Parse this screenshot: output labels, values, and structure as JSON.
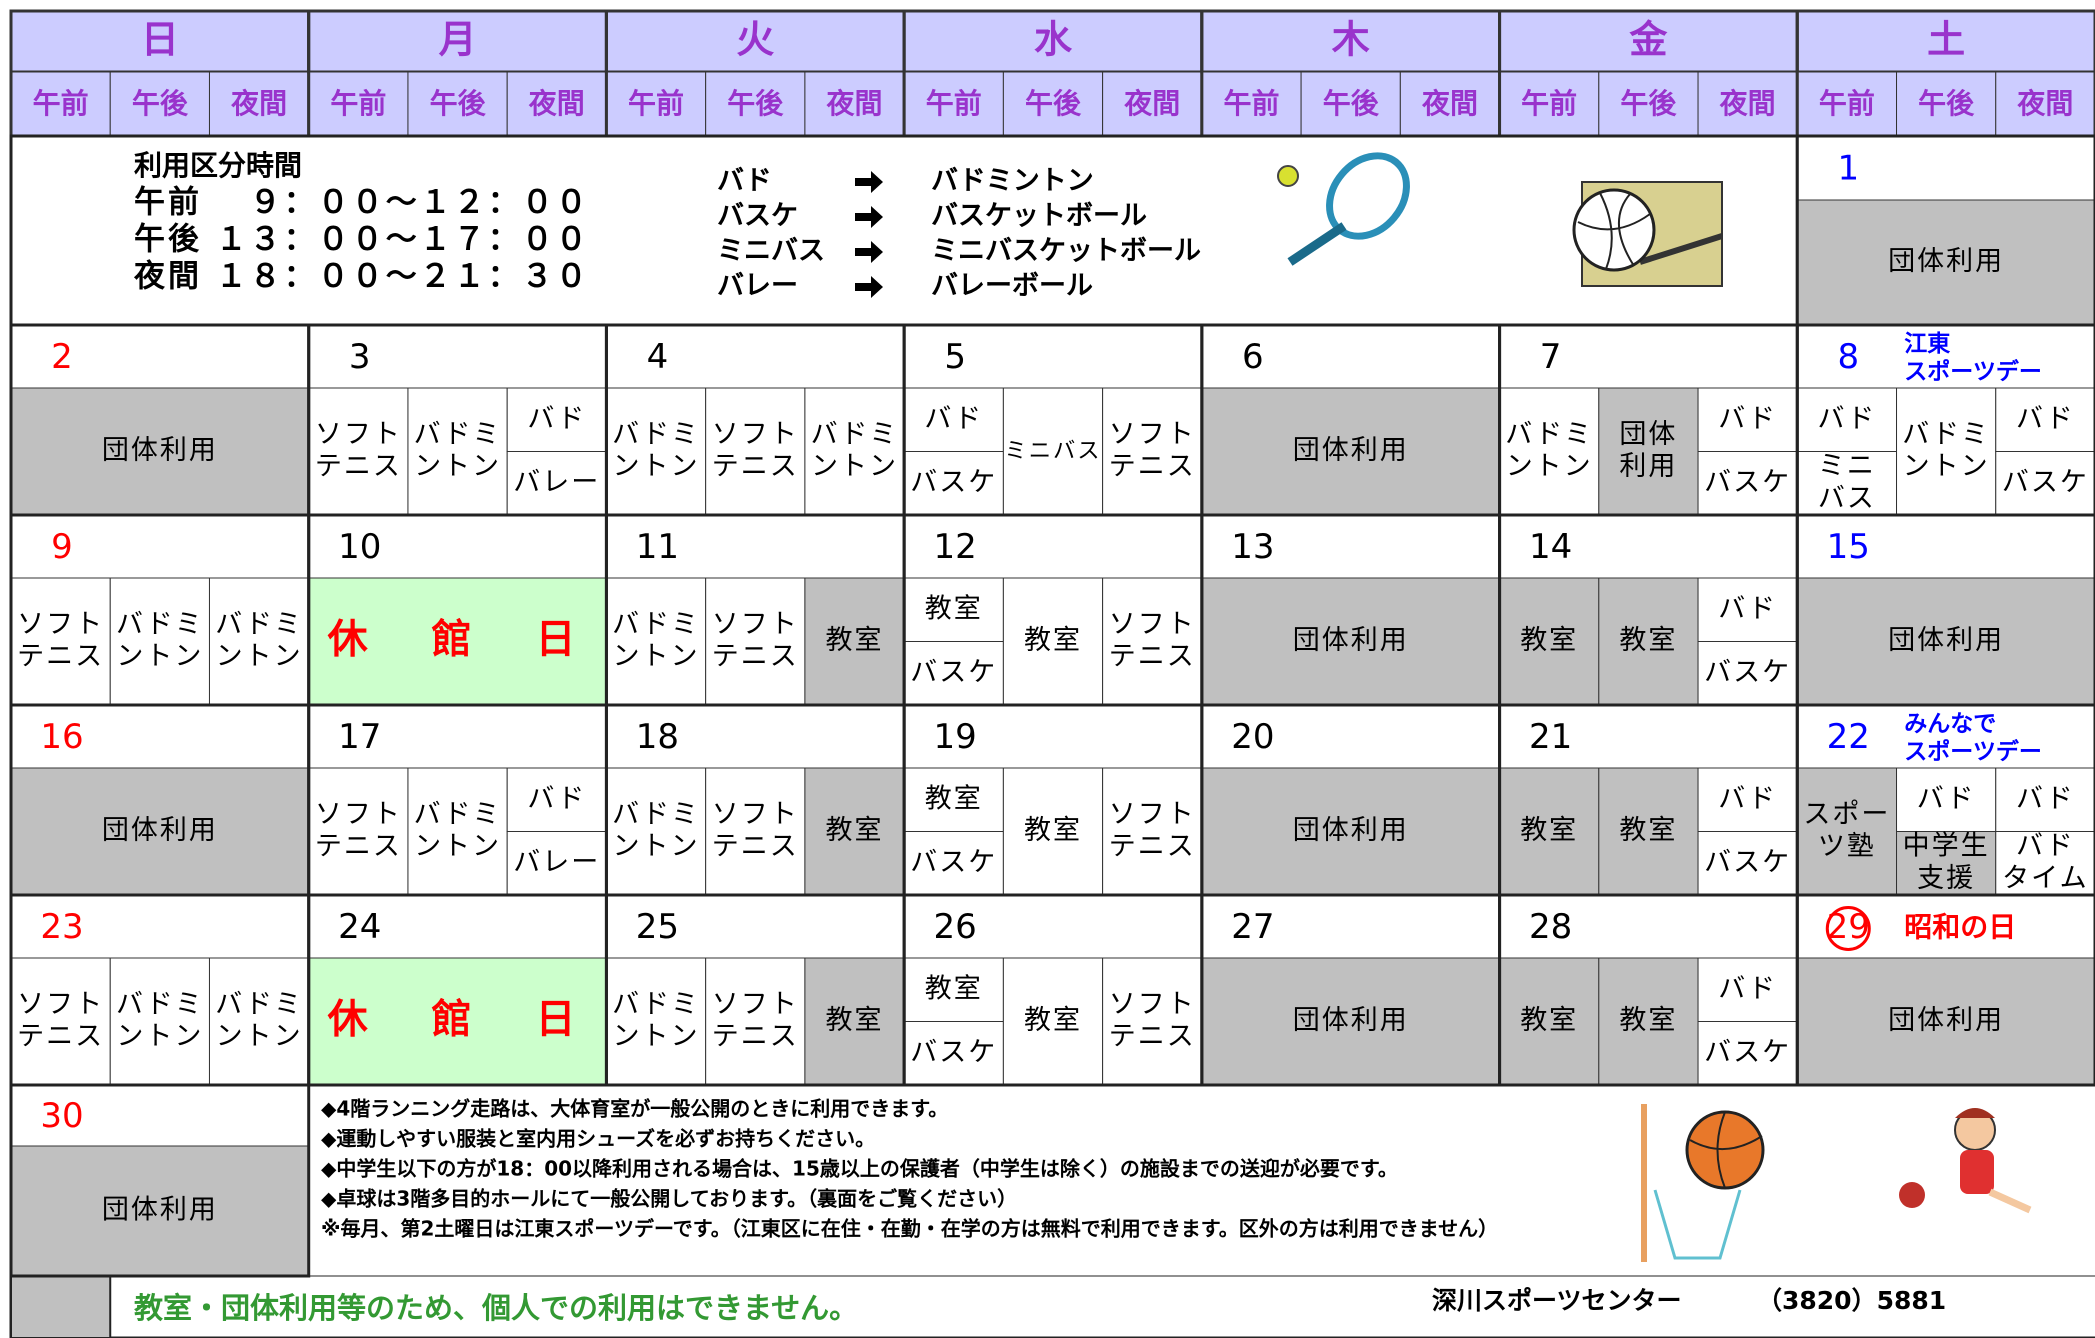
{
  "days_of_week": [
    "日",
    "月",
    "火",
    "水",
    "木",
    "金",
    "土"
  ],
  "periods": [
    "午前",
    "午後",
    "夜間"
  ],
  "usage_times": {
    "title": "利用区分時間",
    "rows": [
      "午前　 ９：００～１２：００",
      "午後 １３：００～１７：００",
      "夜間 １８：００～２１：３０"
    ]
  },
  "abbreviations": [
    {
      "short": "バド",
      "full": "バドミントン"
    },
    {
      "short": "バスケ",
      "full": "バスケットボール"
    },
    {
      "short": "ミニバス",
      "full": "ミニバスケットボール"
    },
    {
      "short": "バレー",
      "full": "バレーボール"
    }
  ],
  "first_day": {
    "date": "1",
    "date_color": "#0000ff",
    "cells": [
      {
        "lines": [
          "団体利用"
        ],
        "fill": "#c0c0c0"
      }
    ]
  },
  "weeks": [
    [
      {
        "date": "2",
        "date_color": "#ff0000",
        "cells": [
          {
            "lines": [
              "団体利用"
            ],
            "fill": "#c0c0c0"
          }
        ]
      },
      {
        "date": "3",
        "cells": [
          {
            "lines": [
              "ソフト",
              "テニス"
            ]
          },
          {
            "lines": [
              "バドミ",
              "ントン"
            ]
          },
          {
            "top": {
              "lines": [
                "バド"
              ]
            },
            "bottom": {
              "lines": [
                "バレー"
              ]
            }
          }
        ]
      },
      {
        "date": "4",
        "cells": [
          {
            "lines": [
              "バドミ",
              "ントン"
            ]
          },
          {
            "lines": [
              "ソフト",
              "テニス"
            ]
          },
          {
            "lines": [
              "バドミ",
              "ントン"
            ]
          }
        ]
      },
      {
        "date": "5",
        "cells": [
          {
            "top": {
              "lines": [
                "バド"
              ]
            },
            "bottom": {
              "lines": [
                "バスケ"
              ]
            }
          },
          {
            "lines": [
              "ミニバス"
            ]
          },
          {
            "lines": [
              "ソフト",
              "テニス"
            ]
          }
        ]
      },
      {
        "date": "6",
        "cells": [
          {
            "lines": [
              "団体利用"
            ],
            "fill": "#c0c0c0"
          }
        ]
      },
      {
        "date": "7",
        "cells": [
          {
            "lines": [
              "バドミ",
              "ントン"
            ]
          },
          {
            "lines": [
              "団体",
              "利用"
            ],
            "fill": "#c0c0c0"
          },
          {
            "top": {
              "lines": [
                "バド"
              ]
            },
            "bottom": {
              "lines": [
                "バスケ"
              ]
            }
          }
        ]
      },
      {
        "date": "8",
        "date_color": "#0000ff",
        "note": [
          "江東",
          "スポーツデー"
        ],
        "note_color": "#0000ff",
        "cells": [
          {
            "top": {
              "lines": [
                "バド"
              ]
            },
            "bottom": {
              "lines": [
                "ミニ",
                "バス"
              ]
            }
          },
          {
            "lines": [
              "バドミ",
              "ントン"
            ]
          },
          {
            "top": {
              "lines": [
                "バド"
              ]
            },
            "bottom": {
              "lines": [
                "バスケ"
              ]
            }
          }
        ]
      }
    ],
    [
      {
        "date": "9",
        "date_color": "#ff0000",
        "cells": [
          {
            "lines": [
              "ソフト",
              "テニス"
            ]
          },
          {
            "lines": [
              "バドミ",
              "ントン"
            ]
          },
          {
            "lines": [
              "バドミ",
              "ントン"
            ]
          }
        ]
      },
      {
        "date": "10",
        "cells": [
          {
            "lines": [
              "休　館　日"
            ],
            "fill": "#ccffcc",
            "color": "#ff0000"
          }
        ]
      },
      {
        "date": "11",
        "cells": [
          {
            "lines": [
              "バドミ",
              "ントン"
            ]
          },
          {
            "lines": [
              "ソフト",
              "テニス"
            ]
          },
          {
            "lines": [
              "教室"
            ],
            "fill": "#c0c0c0"
          }
        ]
      },
      {
        "date": "12",
        "cells": [
          {
            "top": {
              "lines": [
                "教室"
              ]
            },
            "bottom": {
              "lines": [
                "バスケ"
              ]
            }
          },
          {
            "lines": [
              "教室"
            ]
          },
          {
            "lines": [
              "ソフト",
              "テニス"
            ]
          }
        ]
      },
      {
        "date": "13",
        "cells": [
          {
            "lines": [
              "団体利用"
            ],
            "fill": "#c0c0c0"
          }
        ]
      },
      {
        "date": "14",
        "cells": [
          {
            "lines": [
              "教室"
            ],
            "fill": "#c0c0c0"
          },
          {
            "lines": [
              "教室"
            ],
            "fill": "#c0c0c0"
          },
          {
            "top": {
              "lines": [
                "バド"
              ]
            },
            "bottom": {
              "lines": [
                "バスケ"
              ]
            }
          }
        ]
      },
      {
        "date": "15",
        "date_color": "#0000ff",
        "cells": [
          {
            "lines": [
              "団体利用"
            ],
            "fill": "#c0c0c0"
          }
        ]
      }
    ],
    [
      {
        "date": "16",
        "date_color": "#ff0000",
        "cells": [
          {
            "lines": [
              "団体利用"
            ],
            "fill": "#c0c0c0"
          }
        ]
      },
      {
        "date": "17",
        "cells": [
          {
            "lines": [
              "ソフト",
              "テニス"
            ]
          },
          {
            "lines": [
              "バドミ",
              "ントン"
            ]
          },
          {
            "top": {
              "lines": [
                "バド"
              ]
            },
            "bottom": {
              "lines": [
                "バレー"
              ]
            }
          }
        ]
      },
      {
        "date": "18",
        "cells": [
          {
            "lines": [
              "バドミ",
              "ントン"
            ]
          },
          {
            "lines": [
              "ソフト",
              "テニス"
            ]
          },
          {
            "lines": [
              "教室"
            ],
            "fill": "#c0c0c0"
          }
        ]
      },
      {
        "date": "19",
        "cells": [
          {
            "top": {
              "lines": [
                "教室"
              ]
            },
            "bottom": {
              "lines": [
                "バスケ"
              ]
            }
          },
          {
            "lines": [
              "教室"
            ]
          },
          {
            "lines": [
              "ソフト",
              "テニス"
            ]
          }
        ]
      },
      {
        "date": "20",
        "cells": [
          {
            "lines": [
              "団体利用"
            ],
            "fill": "#c0c0c0"
          }
        ]
      },
      {
        "date": "21",
        "cells": [
          {
            "lines": [
              "教室"
            ],
            "fill": "#c0c0c0"
          },
          {
            "lines": [
              "教室"
            ],
            "fill": "#c0c0c0"
          },
          {
            "top": {
              "lines": [
                "バド"
              ]
            },
            "bottom": {
              "lines": [
                "バスケ"
              ]
            }
          }
        ]
      },
      {
        "date": "22",
        "date_color": "#0000ff",
        "note": [
          "みんなで",
          "スポーツデー"
        ],
        "note_color": "#0000ff",
        "cells": [
          {
            "lines": [
              "スポー",
              "ツ塾"
            ],
            "fill": "#c0c0c0"
          },
          {
            "top": {
              "lines": [
                "バド"
              ]
            },
            "bottom": {
              "lines": [
                "中学生",
                "支援"
              ],
              "fill": "#c0c0c0"
            }
          },
          {
            "top": {
              "lines": [
                "バド"
              ]
            },
            "bottom": {
              "lines": [
                "バド",
                "タイム"
              ]
            }
          }
        ]
      }
    ],
    [
      {
        "date": "23",
        "date_color": "#ff0000",
        "cells": [
          {
            "lines": [
              "ソフト",
              "テニス"
            ]
          },
          {
            "lines": [
              "バドミ",
              "ントン"
            ]
          },
          {
            "lines": [
              "バドミ",
              "ントン"
            ]
          }
        ]
      },
      {
        "date": "24",
        "cells": [
          {
            "lines": [
              "休　館　日"
            ],
            "fill": "#ccffcc",
            "color": "#ff0000"
          }
        ]
      },
      {
        "date": "25",
        "cells": [
          {
            "lines": [
              "バドミ",
              "ントン"
            ]
          },
          {
            "lines": [
              "ソフト",
              "テニス"
            ]
          },
          {
            "lines": [
              "教室"
            ],
            "fill": "#c0c0c0"
          }
        ]
      },
      {
        "date": "26",
        "cells": [
          {
            "top": {
              "lines": [
                "教室"
              ]
            },
            "bottom": {
              "lines": [
                "バスケ"
              ]
            }
          },
          {
            "lines": [
              "教室"
            ]
          },
          {
            "lines": [
              "ソフト",
              "テニス"
            ]
          }
        ]
      },
      {
        "date": "27",
        "cells": [
          {
            "lines": [
              "団体利用"
            ],
            "fill": "#c0c0c0"
          }
        ]
      },
      {
        "date": "28",
        "cells": [
          {
            "lines": [
              "教室"
            ],
            "fill": "#c0c0c0"
          },
          {
            "lines": [
              "教室"
            ],
            "fill": "#c0c0c0"
          },
          {
            "top": {
              "lines": [
                "バド"
              ]
            },
            "bottom": {
              "lines": [
                "バスケ"
              ]
            }
          }
        ]
      },
      {
        "date": "29",
        "date_color": "#ff0000",
        "circled": true,
        "note": [
          "昭和の日"
        ],
        "note_color": "#ff0000",
        "cells": [
          {
            "lines": [
              "団体利用"
            ],
            "fill": "#c0c0c0"
          }
        ]
      }
    ]
  ],
  "last_day": {
    "date": "30",
    "date_color": "#ff0000",
    "cells": [
      {
        "lines": [
          "団体利用"
        ],
        "fill": "#c0c0c0"
      }
    ]
  },
  "notes": [
    "◆4階ランニング走路は、大体育室が一般公開のときに利用できます。",
    "◆運動しやすい服装と室内用シューズを必ずお持ちください。",
    "◆中学生以下の方が18：00以降利用される場合は、15歳以上の保護者（中学生は除く）の施設までの送迎が必要です。",
    "◆卓球は3階多目的ホールにて一般公開しております。（裏面をご覧ください）",
    "※毎月、第2土曜日は江東スポーツデーです。（江東区に在住・在勤・在学の方は無料で利用できます。区外の方は利用できません）"
  ],
  "legend": "教室・団体利用等のため、個人での利用はできません。",
  "facility": "深川スポーツセンター",
  "phone": "（3820）5881"
}
